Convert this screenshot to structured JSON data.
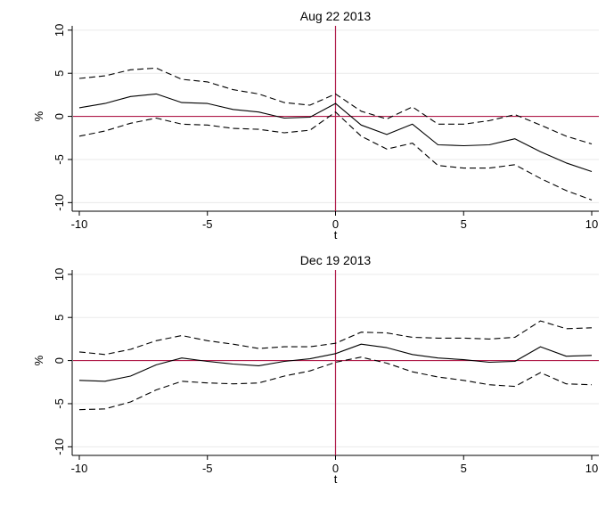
{
  "chart_data": [
    {
      "type": "line",
      "title": "Aug 22 2013",
      "xlabel": "t",
      "ylabel": "%",
      "xlim": [
        -10,
        10
      ],
      "ylim": [
        -11,
        10.5
      ],
      "xticks": [
        -10,
        -5,
        0,
        5,
        10
      ],
      "yticks": [
        -10,
        -5,
        0,
        5,
        10
      ],
      "grid": "horizontal",
      "reference_lines": {
        "x": 0,
        "y": 0,
        "color": "#b01c4a"
      },
      "x": [
        -10,
        -9,
        -8,
        -7,
        -6,
        -5,
        -4,
        -3,
        -2,
        -1,
        0,
        1,
        2,
        3,
        4,
        5,
        6,
        7,
        8,
        9,
        10
      ],
      "series": [
        {
          "style": "dashed",
          "values": [
            4.4,
            4.7,
            5.4,
            5.6,
            4.3,
            4.0,
            3.1,
            2.6,
            1.6,
            1.3,
            2.6,
            0.6,
            -0.3,
            1.1,
            -0.9,
            -0.9,
            -0.5,
            0.2,
            -1.0,
            -2.3,
            -3.2
          ]
        },
        {
          "style": "solid",
          "values": [
            1.0,
            1.5,
            2.3,
            2.6,
            1.6,
            1.5,
            0.8,
            0.5,
            -0.2,
            -0.1,
            1.5,
            -1.0,
            -2.1,
            -0.9,
            -3.3,
            -3.4,
            -3.3,
            -2.6,
            -4.1,
            -5.4,
            -6.4
          ]
        },
        {
          "style": "dashed",
          "values": [
            -2.3,
            -1.7,
            -0.8,
            -0.2,
            -0.9,
            -1.0,
            -1.4,
            -1.5,
            -1.9,
            -1.6,
            0.5,
            -2.3,
            -3.8,
            -3.1,
            -5.7,
            -6.0,
            -6.0,
            -5.6,
            -7.2,
            -8.6,
            -9.7
          ]
        }
      ]
    },
    {
      "type": "line",
      "title": "Dec 19 2013",
      "xlabel": "t",
      "ylabel": "%",
      "xlim": [
        -10,
        10
      ],
      "ylim": [
        -11,
        10.5
      ],
      "xticks": [
        -10,
        -5,
        0,
        5,
        10
      ],
      "yticks": [
        -10,
        -5,
        0,
        5,
        10
      ],
      "grid": "horizontal",
      "reference_lines": {
        "x": 0,
        "y": 0,
        "color": "#b01c4a"
      },
      "x": [
        -10,
        -9,
        -8,
        -7,
        -6,
        -5,
        -4,
        -3,
        -2,
        -1,
        0,
        1,
        2,
        3,
        4,
        5,
        6,
        7,
        8,
        9,
        10
      ],
      "series": [
        {
          "style": "dashed",
          "values": [
            1.0,
            0.7,
            1.3,
            2.3,
            2.9,
            2.3,
            1.9,
            1.4,
            1.6,
            1.6,
            2.0,
            3.3,
            3.2,
            2.7,
            2.6,
            2.6,
            2.5,
            2.7,
            4.6,
            3.7,
            3.8
          ]
        },
        {
          "style": "solid",
          "values": [
            -2.3,
            -2.4,
            -1.8,
            -0.5,
            0.3,
            -0.1,
            -0.4,
            -0.6,
            -0.1,
            0.2,
            0.8,
            1.9,
            1.5,
            0.7,
            0.3,
            0.1,
            -0.2,
            -0.1,
            1.6,
            0.5,
            0.6
          ]
        },
        {
          "style": "dashed",
          "values": [
            -5.7,
            -5.6,
            -4.8,
            -3.4,
            -2.4,
            -2.6,
            -2.7,
            -2.6,
            -1.8,
            -1.2,
            -0.2,
            0.4,
            -0.3,
            -1.3,
            -1.9,
            -2.3,
            -2.8,
            -3.0,
            -1.4,
            -2.7,
            -2.8
          ]
        }
      ]
    }
  ]
}
